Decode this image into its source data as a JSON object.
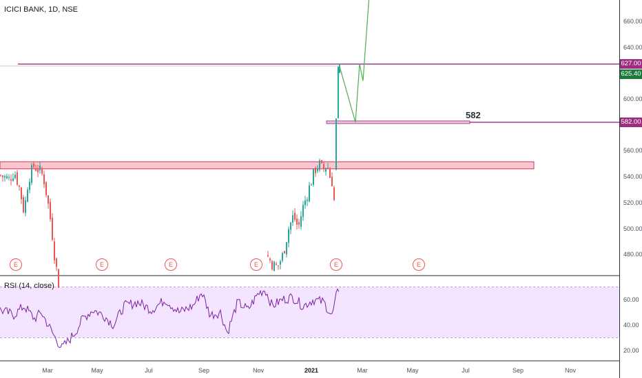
{
  "header": {
    "title": "ICICI BANK, 1D, NSE"
  },
  "rsi": {
    "title": "RSI (14, close)"
  },
  "price_axis": {
    "ticks": [
      {
        "value": 660,
        "label": "660.00"
      },
      {
        "value": 640,
        "label": "640.00"
      },
      {
        "value": 600,
        "label": "600.00"
      },
      {
        "value": 560,
        "label": "560.00"
      },
      {
        "value": 540,
        "label": "540.00"
      },
      {
        "value": 520,
        "label": "520.00"
      },
      {
        "value": 500,
        "label": "500.00"
      },
      {
        "value": 480,
        "label": "480.00"
      }
    ],
    "tags": [
      {
        "label": "627.00",
        "value": 627.0,
        "color": "#9c2d7f"
      },
      {
        "label": "625.40",
        "value": 625.4,
        "color": "#1e7a3c"
      },
      {
        "label": "582.00",
        "value": 582.0,
        "color": "#9c2d7f"
      }
    ]
  },
  "rsi_axis": {
    "ticks": [
      {
        "value": 60,
        "label": "60.00"
      },
      {
        "value": 40,
        "label": "40.00"
      },
      {
        "value": 20,
        "label": "20.00"
      }
    ]
  },
  "time_axis": {
    "labels": [
      "Mar",
      "May",
      "Jul",
      "Sep",
      "Nov",
      "2021",
      "Mar",
      "May",
      "Jul",
      "Sep",
      "Nov"
    ]
  },
  "annotations": {
    "level_582": "582"
  },
  "earnings_marker": "E",
  "colors": {
    "up": "#26a69a",
    "down": "#ef5350",
    "projection": "#4caf50",
    "level_line": "#9c2d7f",
    "zone_fill": "#f8c6d0",
    "zone_stroke": "#e0304f",
    "rsi_line": "#7b1fa2",
    "rsi_band": "#f3e5ff"
  }
}
